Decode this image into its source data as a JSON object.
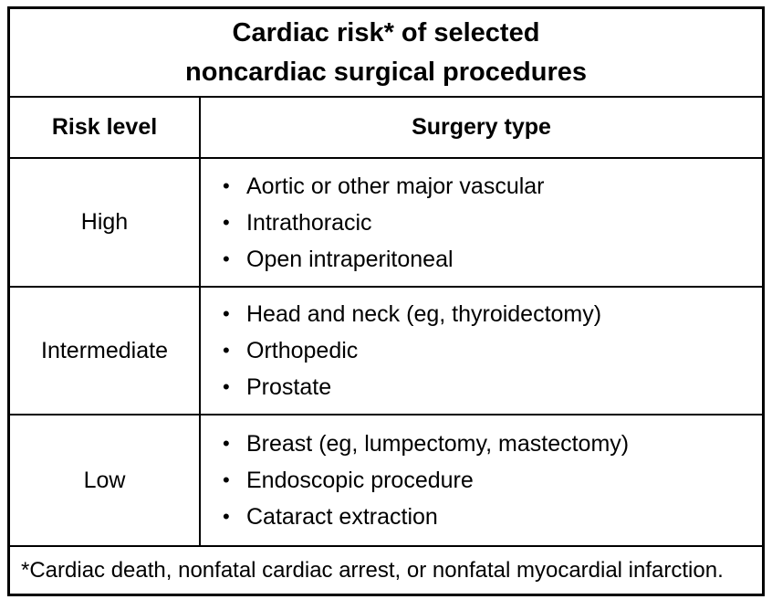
{
  "table": {
    "title_line1": "Cardiac risk* of selected",
    "title_line2": "noncardiac surgical procedures",
    "bullet": "•",
    "columns": {
      "risk": "Risk level",
      "surgery": "Surgery type"
    },
    "rows": [
      {
        "risk": "High",
        "items": [
          "Aortic or other major vascular",
          "Intrathoracic",
          "Open intraperitoneal"
        ]
      },
      {
        "risk": "Intermediate",
        "items": [
          "Head and neck (eg, thyroidectomy)",
          "Orthopedic",
          "Prostate"
        ]
      },
      {
        "risk": "Low",
        "items": [
          "Breast (eg, lumpectomy, mastectomy)",
          "Endoscopic procedure",
          "Cataract extraction"
        ]
      }
    ],
    "footnote": "*Cardiac death, nonfatal cardiac arrest, or nonfatal myocardial infarction.",
    "colors": {
      "background": "#ffffff",
      "text": "#000000",
      "border": "#000000"
    }
  }
}
